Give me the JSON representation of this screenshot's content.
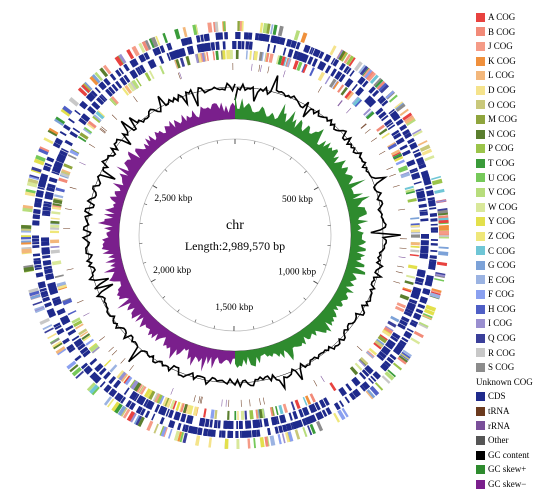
{
  "genome_map": {
    "center": {
      "name": "chr",
      "length_label": "Length:2,989,570 bp"
    },
    "scale": {
      "genome_length_bp": 2989570,
      "labels": [
        {
          "text": "500 kbp",
          "position_bp": 500000
        },
        {
          "text": "1,000 kbp",
          "position_bp": 1000000
        },
        {
          "text": "1,500 kbp",
          "position_bp": 1500000
        },
        {
          "text": "2,000 kbp",
          "position_bp": 2000000
        },
        {
          "text": "2,500 kbp",
          "position_bp": 2500000
        }
      ],
      "tick_interval_bp": 100000
    },
    "tracks": [
      "CDS/COG (forward strand)",
      "CDS/COG (reverse strand)",
      "tRNA/rRNA",
      "GC content",
      "GC skew+",
      "GC skew-"
    ],
    "colors": {
      "cds": "#1f2a8c",
      "gc_content": "#000000",
      "gc_skew_plus": "#2e8b2e",
      "gc_skew_minus": "#7a1f8c",
      "trna": "#6b3a1e",
      "rrna": "#7a4f9a"
    }
  },
  "legend": [
    {
      "label": "A COG",
      "color": "#e8423f",
      "icon": "square-swatch"
    },
    {
      "label": "B COG",
      "color": "#f28a78",
      "icon": "square-swatch"
    },
    {
      "label": "J COG",
      "color": "#f59b87",
      "icon": "square-swatch"
    },
    {
      "label": "K COG",
      "color": "#f0903c",
      "icon": "square-swatch"
    },
    {
      "label": "L COG",
      "color": "#f3b77b",
      "icon": "square-swatch"
    },
    {
      "label": "D COG",
      "color": "#f5e38c",
      "icon": "square-swatch"
    },
    {
      "label": "O COG",
      "color": "#c9c87a",
      "icon": "square-swatch"
    },
    {
      "label": "M COG",
      "color": "#8fa53d",
      "icon": "square-swatch"
    },
    {
      "label": "N COG",
      "color": "#5a7e2e",
      "icon": "square-swatch"
    },
    {
      "label": "P COG",
      "color": "#9bc44a",
      "icon": "square-swatch"
    },
    {
      "label": "T COG",
      "color": "#3a9b3a",
      "icon": "square-swatch"
    },
    {
      "label": "U COG",
      "color": "#76c95a",
      "icon": "square-swatch"
    },
    {
      "label": "V COG",
      "color": "#b7dd7c",
      "icon": "square-swatch"
    },
    {
      "label": "W COG",
      "color": "#d9e89a",
      "icon": "square-swatch"
    },
    {
      "label": "Y COG",
      "color": "#e3e04c",
      "icon": "square-swatch"
    },
    {
      "label": "Z COG",
      "color": "#efe77a",
      "icon": "square-swatch"
    },
    {
      "label": "C COG",
      "color": "#6fc6d6",
      "icon": "square-swatch"
    },
    {
      "label": "G COG",
      "color": "#7ca2d8",
      "icon": "square-swatch"
    },
    {
      "label": "E COG",
      "color": "#9bb3e2",
      "icon": "square-swatch"
    },
    {
      "label": "F COG",
      "color": "#8aa0f0",
      "icon": "square-swatch"
    },
    {
      "label": "H COG",
      "color": "#4f5fc6",
      "icon": "square-swatch"
    },
    {
      "label": "I COG",
      "color": "#9a8fd0",
      "icon": "square-swatch"
    },
    {
      "label": "Q COG",
      "color": "#3a3f9a",
      "icon": "square-swatch"
    },
    {
      "label": "R COG",
      "color": "#c8c8c8",
      "icon": "square-swatch"
    },
    {
      "label": "S COG",
      "color": "#8c8c8c",
      "icon": "square-swatch"
    },
    {
      "label": "Unknown COG",
      "color": "",
      "icon": "none"
    },
    {
      "label": "CDS",
      "color": "#1f2a8c",
      "icon": "square-swatch"
    },
    {
      "label": "tRNA",
      "color": "#6b3a1e",
      "icon": "square-swatch"
    },
    {
      "label": "rRNA",
      "color": "#7a4f9a",
      "icon": "square-swatch"
    },
    {
      "label": "Other",
      "color": "#555555",
      "icon": "square-swatch"
    },
    {
      "label": "GC content",
      "color": "#000000",
      "icon": "square-swatch"
    },
    {
      "label": "GC skew+",
      "color": "#2e8b2e",
      "icon": "square-swatch"
    },
    {
      "label": "GC skew−",
      "color": "#7a1f8c",
      "icon": "square-swatch"
    }
  ]
}
